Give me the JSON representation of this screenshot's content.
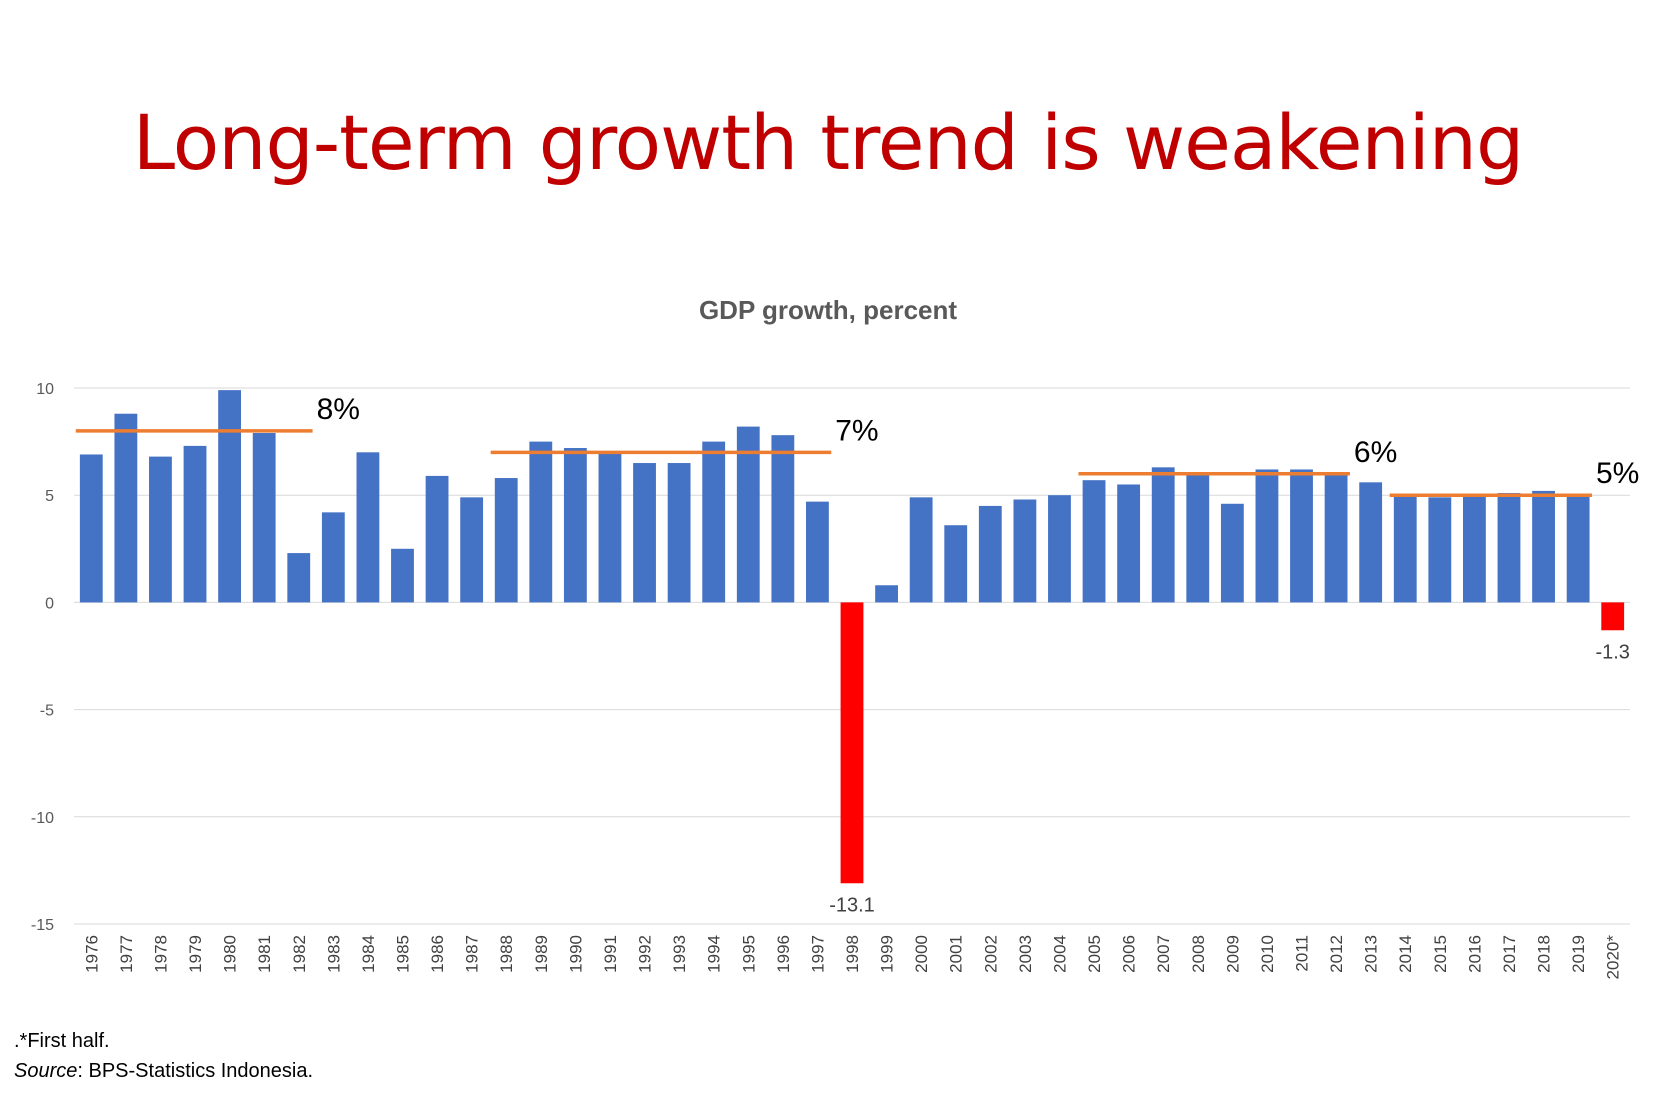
{
  "title": "Long-term growth trend is weakening",
  "chart_data": {
    "type": "bar",
    "title": "GDP growth, percent",
    "xlabel": "",
    "ylabel": "",
    "ylim": [
      -15,
      10
    ],
    "yticks": [
      10,
      5,
      0,
      -5,
      -10,
      -15
    ],
    "grid": true,
    "categories": [
      "1976",
      "1977",
      "1978",
      "1979",
      "1980",
      "1981",
      "1982",
      "1983",
      "1984",
      "1985",
      "1986",
      "1987",
      "1988",
      "1989",
      "1990",
      "1991",
      "1992",
      "1993",
      "1994",
      "1995",
      "1996",
      "1997",
      "1998",
      "1999",
      "2000",
      "2001",
      "2002",
      "2003",
      "2004",
      "2005",
      "2006",
      "2007",
      "2008",
      "2009",
      "2010",
      "2011",
      "2012",
      "2013",
      "2014",
      "2015",
      "2016",
      "2017",
      "2018",
      "2019",
      "2020*"
    ],
    "values": [
      6.9,
      8.8,
      6.8,
      7.3,
      9.9,
      7.9,
      2.3,
      4.2,
      7.0,
      2.5,
      5.9,
      4.9,
      5.8,
      7.5,
      7.2,
      7.0,
      6.5,
      6.5,
      7.5,
      8.2,
      7.8,
      4.7,
      -13.1,
      0.8,
      4.9,
      3.6,
      4.5,
      4.8,
      5.0,
      5.7,
      5.5,
      6.3,
      6.0,
      4.6,
      6.2,
      6.2,
      6.0,
      5.6,
      5.0,
      4.9,
      5.0,
      5.1,
      5.2,
      5.0,
      -1.3
    ],
    "colors": {
      "positive": "#4472c4",
      "negative": "#ff0000",
      "trend": "#ed7d31",
      "grid": "#d9d9d9"
    },
    "data_labels": [
      {
        "category": "1998",
        "text": "-13.1"
      },
      {
        "category": "2020*",
        "text": "-1.3"
      }
    ],
    "trend_lines": [
      {
        "from": "1976",
        "to": "1982",
        "value": 8,
        "label": "8%"
      },
      {
        "from": "1988",
        "to": "1997",
        "value": 7,
        "label": "7%"
      },
      {
        "from": "2005",
        "to": "2012",
        "value": 6,
        "label": "6%"
      },
      {
        "from": "2014",
        "to": "2019",
        "value": 5,
        "label": "5%"
      }
    ]
  },
  "footnote": ".*First half.",
  "source": {
    "label": "Source",
    "text": ": BPS-Statistics Indonesia."
  }
}
